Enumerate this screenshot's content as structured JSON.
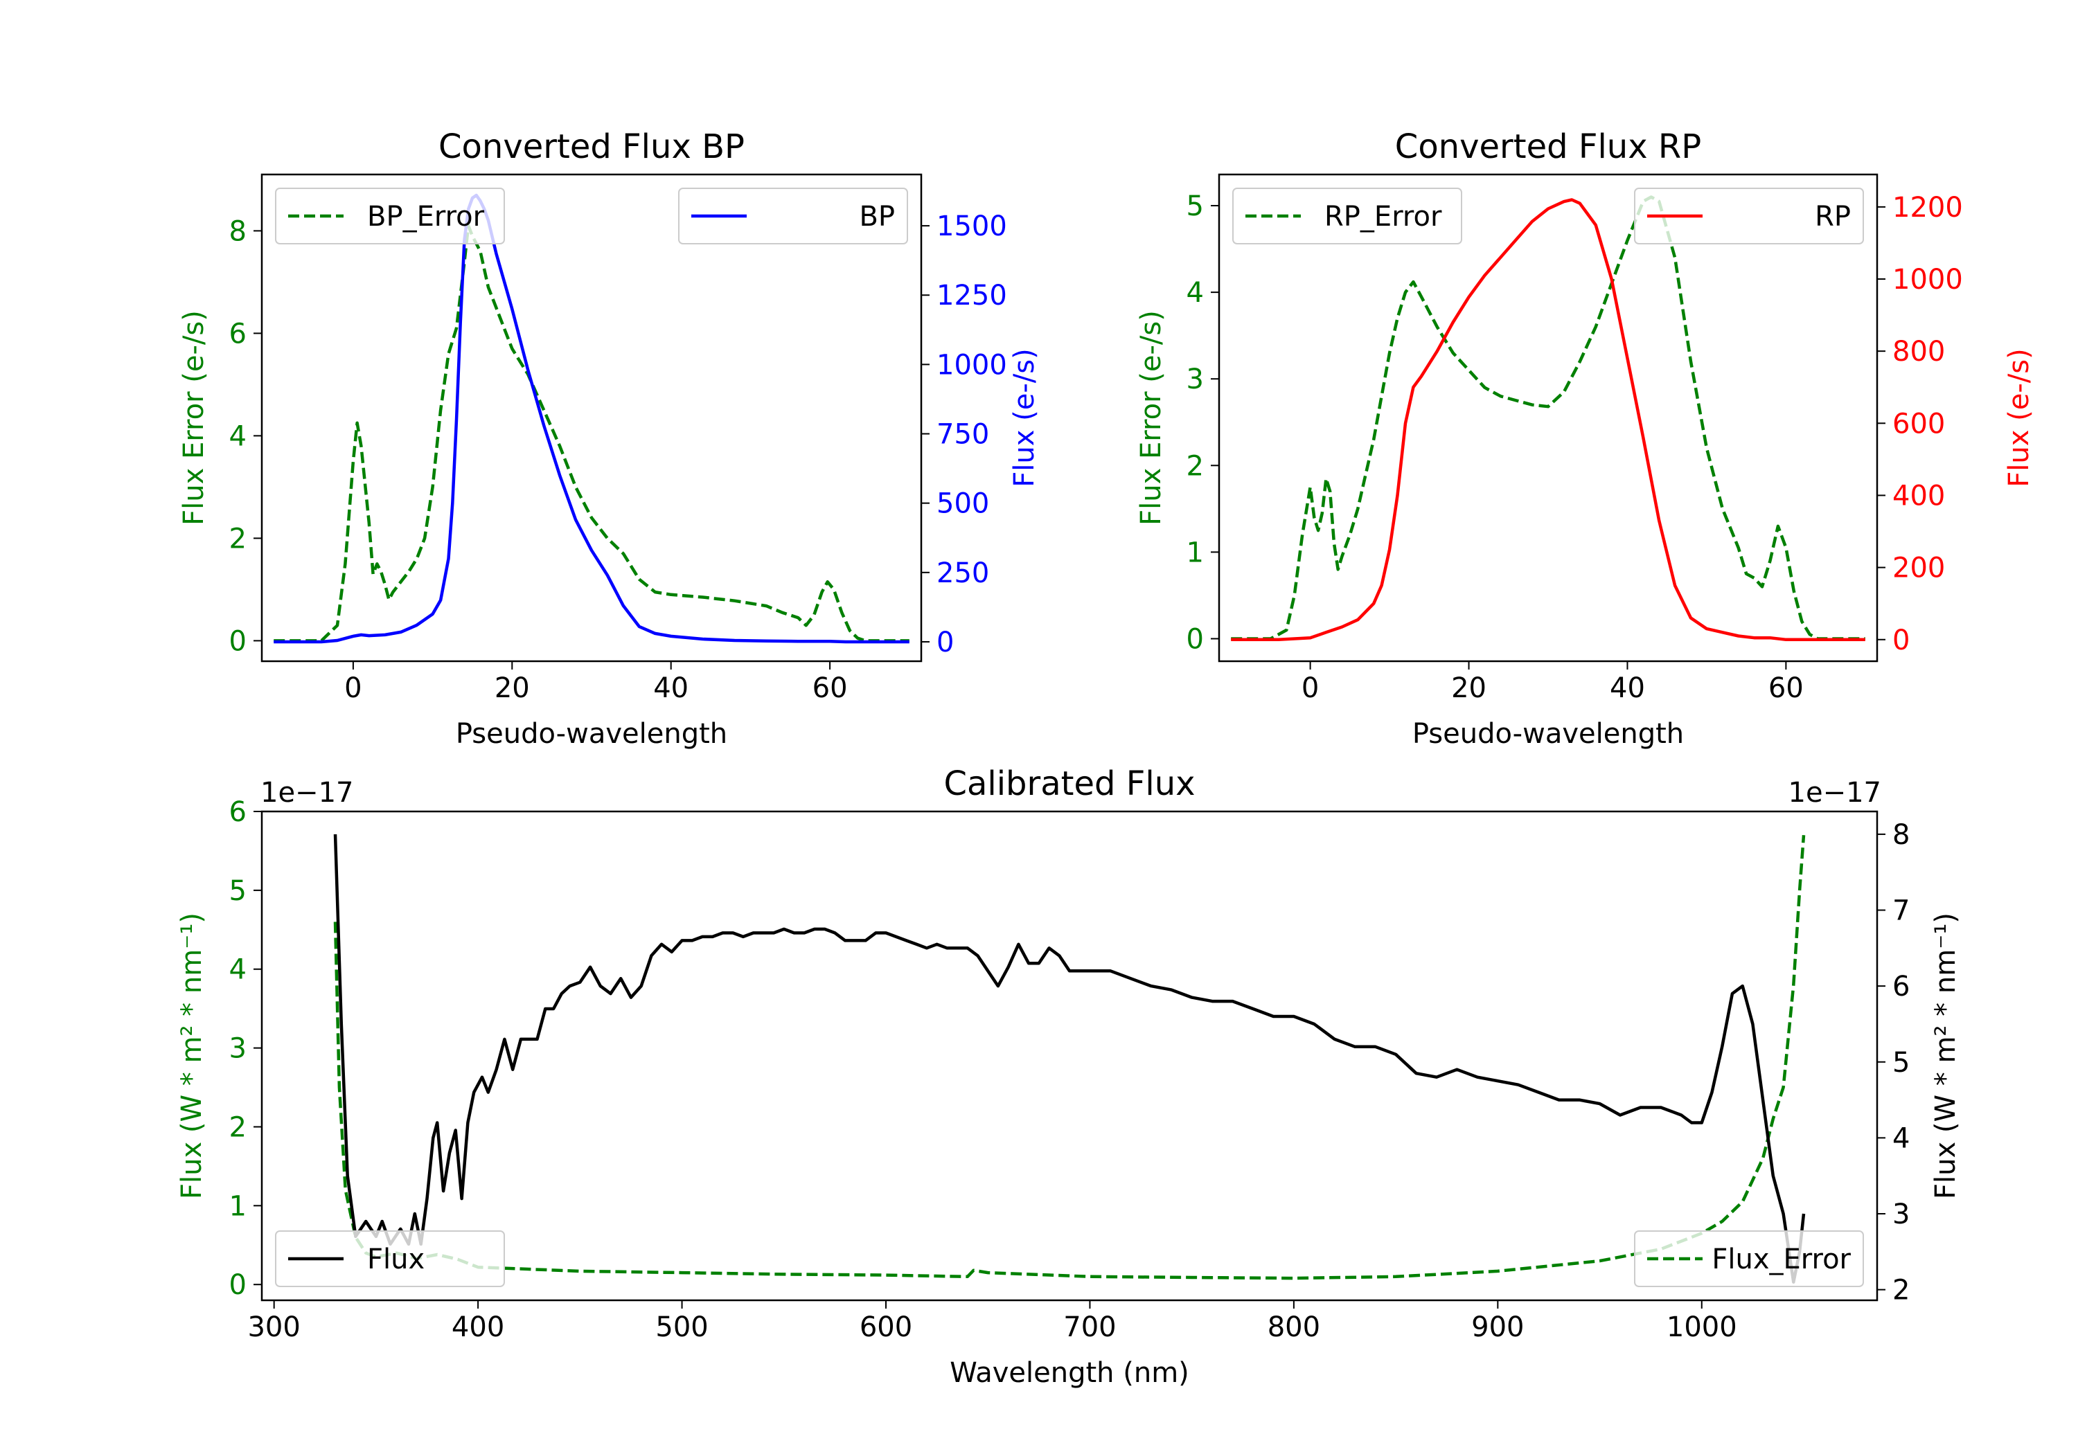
{
  "colors": {
    "green": "#008000",
    "blue": "#0000ff",
    "red": "#ff0000",
    "black": "#000000"
  },
  "chart_data": [
    {
      "id": "bp",
      "type": "line",
      "title": "Converted Flux BP",
      "xlabel": "Pseudo-wavelength",
      "ylabel_left": "Flux Error (e-/s)",
      "ylabel_right": "Flux (e-/s)",
      "xlim": [
        -11.5,
        71.5
      ],
      "ylim_left": [
        -0.4,
        9.1
      ],
      "ylim_right": [
        -70,
        1685
      ],
      "xticks": [
        0,
        20,
        40,
        60
      ],
      "yticks_left": [
        0,
        2,
        4,
        6,
        8
      ],
      "yticks_right": [
        0,
        250,
        500,
        750,
        1000,
        1250,
        1500
      ],
      "legend_left": {
        "position": "upper left",
        "label": "BP_Error"
      },
      "legend_right": {
        "position": "upper right",
        "label": "BP"
      },
      "series": [
        {
          "name": "BP_Error",
          "axis": "left",
          "color": "#008000",
          "style": "dashed",
          "x": [
            -10,
            -4,
            -2,
            -1,
            0,
            0.5,
            1,
            2,
            2.5,
            3,
            3.5,
            4,
            4.5,
            5,
            6,
            7,
            8,
            9,
            10,
            11,
            12,
            13,
            14,
            14.5,
            15,
            16,
            17,
            18,
            19,
            20,
            22,
            24,
            26,
            28,
            30,
            32,
            34,
            36,
            38,
            40,
            44,
            48,
            52,
            54,
            56,
            57,
            58,
            59,
            59.7,
            60.5,
            61.5,
            62.5,
            63.5,
            64.5,
            66,
            70
          ],
          "y": [
            0,
            0,
            0.3,
            1.5,
            3.5,
            4.25,
            3.8,
            2.3,
            1.3,
            1.5,
            1.35,
            1.1,
            0.8,
            0.95,
            1.15,
            1.35,
            1.6,
            2.0,
            3.0,
            4.5,
            5.6,
            6.1,
            7.4,
            8.1,
            7.9,
            7.6,
            6.9,
            6.5,
            6.1,
            5.7,
            5.2,
            4.5,
            3.8,
            3.0,
            2.4,
            2.0,
            1.7,
            1.2,
            0.95,
            0.9,
            0.85,
            0.78,
            0.68,
            0.55,
            0.45,
            0.3,
            0.5,
            0.95,
            1.15,
            1.0,
            0.55,
            0.2,
            0.05,
            0,
            0,
            0
          ]
        },
        {
          "name": "BP",
          "axis": "right",
          "color": "#0000ff",
          "style": "solid",
          "x": [
            -10,
            -4,
            -2,
            0,
            1,
            2,
            4,
            6,
            8,
            10,
            11,
            12,
            12.5,
            13,
            13.5,
            14,
            14.5,
            15,
            15.5,
            16,
            16.5,
            17,
            18,
            20,
            22,
            24,
            26,
            28,
            30,
            32,
            34,
            36,
            38,
            40,
            44,
            48,
            52,
            56,
            60,
            62,
            64,
            66,
            68,
            70
          ],
          "y": [
            0,
            0,
            5,
            20,
            25,
            22,
            25,
            35,
            60,
            100,
            150,
            300,
            500,
            800,
            1150,
            1450,
            1560,
            1600,
            1610,
            1590,
            1560,
            1520,
            1400,
            1200,
            980,
            780,
            600,
            440,
            330,
            240,
            130,
            55,
            30,
            20,
            10,
            5,
            3,
            2,
            2,
            0,
            0,
            0,
            0,
            0
          ]
        }
      ]
    },
    {
      "id": "rp",
      "type": "line",
      "title": "Converted Flux RP",
      "xlabel": "Pseudo-wavelength",
      "ylabel_left": "Flux Error (e-/s)",
      "ylabel_right": "Flux (e-/s)",
      "xlim": [
        -11.5,
        71.5
      ],
      "ylim_left": [
        -0.26,
        5.36
      ],
      "ylim_right": [
        -60,
        1290
      ],
      "xticks": [
        0,
        20,
        40,
        60
      ],
      "yticks_left": [
        0,
        1,
        2,
        3,
        4,
        5
      ],
      "yticks_right": [
        0,
        200,
        400,
        600,
        800,
        1000,
        1200
      ],
      "legend_left": {
        "position": "upper left",
        "label": "RP_Error"
      },
      "legend_right": {
        "position": "upper right",
        "label": "RP"
      },
      "series": [
        {
          "name": "RP_Error",
          "axis": "left",
          "color": "#008000",
          "style": "dashed",
          "x": [
            -10,
            -5,
            -3,
            -2,
            -1,
            0,
            0.5,
            1,
            1.5,
            2,
            2.5,
            3,
            3.5,
            4,
            5,
            6,
            7,
            8,
            9,
            10,
            11,
            12,
            13,
            14,
            16,
            18,
            20,
            22,
            24,
            26,
            28,
            30,
            32,
            34,
            36,
            38,
            40,
            42,
            43,
            44,
            46,
            48,
            50,
            52,
            54,
            55,
            56,
            57,
            58,
            59,
            60,
            61,
            62,
            63,
            64,
            66,
            70
          ],
          "y": [
            0,
            0,
            0.1,
            0.5,
            1.2,
            1.75,
            1.4,
            1.25,
            1.45,
            1.85,
            1.7,
            1.1,
            0.8,
            0.95,
            1.2,
            1.5,
            1.9,
            2.3,
            2.8,
            3.3,
            3.7,
            4.0,
            4.12,
            3.95,
            3.6,
            3.3,
            3.1,
            2.9,
            2.8,
            2.75,
            2.7,
            2.68,
            2.85,
            3.2,
            3.6,
            4.1,
            4.6,
            5.05,
            5.1,
            5.05,
            4.4,
            3.2,
            2.2,
            1.5,
            1.05,
            0.75,
            0.7,
            0.6,
            0.9,
            1.3,
            1.05,
            0.55,
            0.2,
            0.05,
            0,
            0,
            0
          ]
        },
        {
          "name": "RP",
          "axis": "right",
          "color": "#ff0000",
          "style": "solid",
          "x": [
            -10,
            -4,
            0,
            2,
            4,
            6,
            8,
            9,
            10,
            11,
            12,
            13,
            14,
            16,
            18,
            20,
            22,
            24,
            26,
            28,
            30,
            32,
            33,
            34,
            36,
            38,
            40,
            42,
            44,
            46,
            48,
            50,
            52,
            54,
            56,
            58,
            60,
            62,
            64,
            66,
            70
          ],
          "y": [
            0,
            0,
            5,
            20,
            35,
            55,
            100,
            150,
            250,
            400,
            600,
            700,
            730,
            800,
            880,
            950,
            1010,
            1060,
            1110,
            1160,
            1195,
            1215,
            1220,
            1210,
            1150,
            1000,
            780,
            560,
            330,
            150,
            60,
            30,
            20,
            10,
            5,
            5,
            0,
            0,
            0,
            0,
            0
          ]
        }
      ]
    },
    {
      "id": "calibrated",
      "type": "line",
      "title": "Calibrated Flux",
      "xlabel": "Wavelength (nm)",
      "ylabel_left": "Flux (W * m² * nm⁻¹)",
      "ylabel_right": "Flux (W * m² * nm⁻¹)",
      "offset_left": "1e−17",
      "offset_right": "1e−17",
      "xlim": [
        294,
        1086
      ],
      "ylim_left": [
        -0.2,
        6.0
      ],
      "ylim_right": [
        1.86,
        8.3
      ],
      "xticks": [
        300,
        400,
        500,
        600,
        700,
        800,
        900,
        1000
      ],
      "yticks_left": [
        0,
        1,
        2,
        3,
        4,
        5,
        6
      ],
      "yticks_right": [
        2,
        3,
        4,
        5,
        6,
        7,
        8
      ],
      "legend_left": {
        "position": "lower left",
        "label": "Flux"
      },
      "legend_right": {
        "position": "lower right",
        "label": "Flux_Error"
      },
      "series": [
        {
          "name": "Flux_Error",
          "axis": "left",
          "color": "#008000",
          "style": "dashed",
          "x": [
            330,
            332,
            335,
            340,
            345,
            350,
            360,
            370,
            380,
            390,
            400,
            420,
            450,
            500,
            550,
            600,
            640,
            643,
            650,
            700,
            750,
            800,
            850,
            900,
            950,
            980,
            1000,
            1010,
            1020,
            1030,
            1035,
            1040,
            1045,
            1048,
            1050
          ],
          "y": [
            4.6,
            2.5,
            1.2,
            0.6,
            0.4,
            0.35,
            0.4,
            0.33,
            0.38,
            0.32,
            0.22,
            0.2,
            0.17,
            0.15,
            0.13,
            0.12,
            0.1,
            0.18,
            0.15,
            0.1,
            0.09,
            0.08,
            0.1,
            0.17,
            0.3,
            0.45,
            0.65,
            0.8,
            1.05,
            1.6,
            2.1,
            2.5,
            3.8,
            5.0,
            5.7
          ]
        },
        {
          "name": "Flux",
          "axis": "right",
          "color": "#000000",
          "style": "solid",
          "x": [
            330,
            333,
            336,
            340,
            345,
            350,
            353,
            357,
            362,
            366,
            369,
            372,
            375,
            378,
            380,
            383,
            386,
            389,
            392,
            395,
            398,
            402,
            405,
            409,
            413,
            417,
            421,
            425,
            429,
            433,
            437,
            441,
            445,
            450,
            455,
            460,
            465,
            470,
            475,
            480,
            485,
            490,
            495,
            500,
            505,
            510,
            515,
            520,
            525,
            530,
            535,
            540,
            545,
            550,
            555,
            560,
            565,
            570,
            575,
            580,
            585,
            590,
            595,
            600,
            605,
            610,
            615,
            620,
            625,
            630,
            635,
            640,
            645,
            650,
            655,
            660,
            665,
            670,
            675,
            680,
            685,
            690,
            700,
            710,
            720,
            730,
            740,
            750,
            760,
            770,
            780,
            790,
            800,
            810,
            820,
            830,
            840,
            850,
            860,
            870,
            880,
            890,
            900,
            910,
            920,
            930,
            940,
            950,
            960,
            970,
            980,
            985,
            990,
            995,
            1000,
            1005,
            1010,
            1015,
            1020,
            1025,
            1030,
            1035,
            1040,
            1045,
            1048,
            1050
          ],
          "y": [
            8.0,
            5.5,
            3.5,
            2.7,
            2.9,
            2.7,
            2.9,
            2.6,
            2.8,
            2.6,
            3.0,
            2.6,
            3.2,
            4.0,
            4.2,
            3.3,
            3.8,
            4.1,
            3.2,
            4.2,
            4.6,
            4.8,
            4.6,
            4.9,
            5.3,
            4.9,
            5.3,
            5.3,
            5.3,
            5.7,
            5.7,
            5.9,
            6.0,
            6.05,
            6.25,
            6.0,
            5.9,
            6.1,
            5.85,
            6.0,
            6.4,
            6.55,
            6.45,
            6.6,
            6.6,
            6.65,
            6.65,
            6.7,
            6.7,
            6.65,
            6.7,
            6.7,
            6.7,
            6.75,
            6.7,
            6.7,
            6.75,
            6.75,
            6.7,
            6.6,
            6.6,
            6.6,
            6.7,
            6.7,
            6.65,
            6.6,
            6.55,
            6.5,
            6.55,
            6.5,
            6.5,
            6.5,
            6.4,
            6.2,
            6.0,
            6.25,
            6.55,
            6.3,
            6.3,
            6.5,
            6.4,
            6.2,
            6.2,
            6.2,
            6.1,
            6.0,
            5.95,
            5.85,
            5.8,
            5.8,
            5.7,
            5.6,
            5.6,
            5.5,
            5.3,
            5.2,
            5.2,
            5.1,
            4.85,
            4.8,
            4.9,
            4.8,
            4.75,
            4.7,
            4.6,
            4.5,
            4.5,
            4.45,
            4.3,
            4.4,
            4.4,
            4.35,
            4.3,
            4.2,
            4.2,
            4.6,
            5.2,
            5.9,
            6.0,
            5.5,
            4.5,
            3.5,
            3.0,
            2.1,
            2.5,
            3.0
          ]
        }
      ]
    }
  ]
}
